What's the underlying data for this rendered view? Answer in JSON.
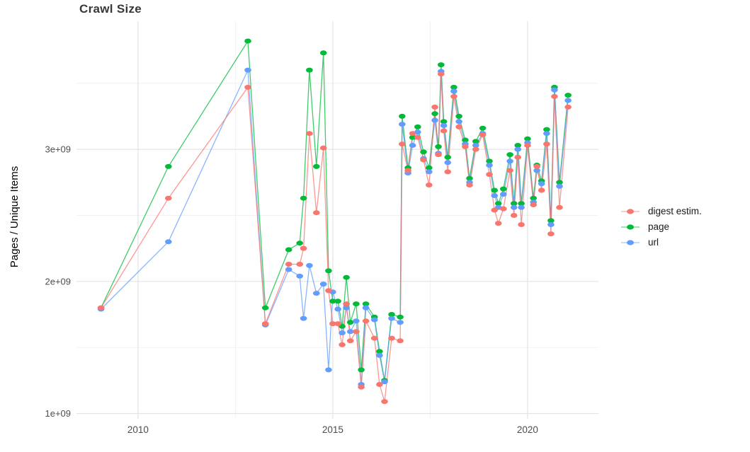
{
  "title": "Crawl Size",
  "y_axis_title": "Pages / Unique Items",
  "chart_data": {
    "type": "line",
    "title": "Crawl Size",
    "xlabel": "",
    "ylabel": "Pages / Unique Items",
    "value_unit": "pages (scientific notation, 1e+09 = 1 billion)",
    "xlim": [
      2008.42,
      2021.82
    ],
    "ylim_e9": [
      0.96,
      3.97
    ],
    "grid": true,
    "x_ticks": [
      {
        "value": 2010,
        "label": "2010"
      },
      {
        "value": 2015,
        "label": "2015"
      },
      {
        "value": 2020,
        "label": "2020"
      }
    ],
    "y_ticks": [
      {
        "value_e9": 1,
        "label": "1e+09"
      },
      {
        "value_e9": 2,
        "label": "2e+09"
      },
      {
        "value_e9": 3,
        "label": "3e+09"
      }
    ],
    "x_minor_gridlines": [
      2012.5,
      2017.5
    ],
    "y_minor_gridlines_e9": [
      1.5,
      2.5,
      3.5
    ],
    "legend": {
      "position": "right",
      "items": [
        {
          "label": "digest estim.",
          "color": "#F8766D"
        },
        {
          "label": "page",
          "color": "#00BA38"
        },
        {
          "label": "url",
          "color": "#619CFF"
        }
      ]
    },
    "x": [
      2009.05,
      2010.78,
      2012.82,
      2013.27,
      2013.87,
      2014.15,
      2014.25,
      2014.4,
      2014.58,
      2014.76,
      2014.89,
      2015.0,
      2015.13,
      2015.24,
      2015.35,
      2015.45,
      2015.6,
      2015.73,
      2015.85,
      2016.07,
      2016.2,
      2016.33,
      2016.51,
      2016.73,
      2016.78,
      2016.93,
      2017.05,
      2017.18,
      2017.33,
      2017.47,
      2017.62,
      2017.71,
      2017.78,
      2017.85,
      2017.95,
      2018.11,
      2018.24,
      2018.4,
      2018.51,
      2018.67,
      2018.85,
      2019.02,
      2019.15,
      2019.25,
      2019.38,
      2019.55,
      2019.65,
      2019.75,
      2019.84,
      2020.0,
      2020.15,
      2020.24,
      2020.36,
      2020.49,
      2020.6,
      2020.69,
      2020.82,
      2021.04
    ],
    "series": [
      {
        "name": "page",
        "color": "#00BA38",
        "values_e9": [
          1.8,
          2.87,
          3.82,
          1.8,
          2.24,
          2.29,
          2.63,
          3.6,
          2.87,
          3.73,
          2.08,
          1.85,
          1.85,
          1.66,
          2.03,
          1.69,
          1.83,
          1.33,
          1.83,
          1.73,
          1.47,
          1.25,
          1.75,
          1.73,
          3.25,
          2.86,
          3.09,
          3.17,
          2.98,
          2.86,
          3.27,
          3.02,
          3.64,
          3.21,
          2.94,
          3.47,
          3.25,
          3.07,
          2.78,
          3.06,
          3.16,
          2.91,
          2.69,
          2.59,
          2.7,
          2.96,
          2.59,
          3.03,
          2.59,
          3.08,
          2.63,
          2.88,
          2.76,
          3.15,
          2.46,
          3.47,
          2.75,
          3.41
        ]
      },
      {
        "name": "url",
        "color": "#619CFF",
        "values_e9": [
          1.79,
          2.3,
          3.6,
          1.67,
          2.09,
          2.04,
          1.72,
          2.12,
          1.91,
          1.98,
          1.33,
          1.92,
          1.79,
          1.61,
          1.8,
          1.62,
          1.7,
          1.22,
          1.8,
          1.71,
          1.44,
          1.24,
          1.72,
          1.69,
          3.19,
          2.82,
          3.03,
          3.13,
          2.93,
          2.83,
          3.22,
          2.97,
          3.59,
          3.18,
          2.9,
          3.44,
          3.21,
          3.04,
          2.75,
          3.03,
          3.12,
          2.88,
          2.65,
          2.56,
          2.66,
          2.91,
          2.56,
          3.0,
          2.56,
          3.05,
          2.6,
          2.84,
          2.74,
          3.12,
          2.43,
          3.45,
          2.72,
          3.37
        ]
      },
      {
        "name": "digest estim.",
        "color": "#F8766D",
        "values_e9": [
          1.8,
          2.63,
          3.47,
          1.68,
          2.13,
          2.13,
          2.25,
          3.12,
          2.52,
          3.01,
          1.93,
          1.68,
          1.68,
          1.52,
          1.83,
          1.55,
          1.62,
          1.2,
          1.7,
          1.57,
          1.22,
          1.09,
          1.57,
          1.55,
          3.04,
          2.84,
          3.12,
          3.09,
          2.92,
          2.73,
          3.32,
          2.96,
          3.57,
          3.14,
          2.83,
          3.4,
          3.17,
          3.02,
          2.73,
          3.0,
          3.11,
          2.81,
          2.54,
          2.44,
          2.55,
          2.84,
          2.5,
          2.94,
          2.43,
          3.03,
          2.58,
          2.87,
          2.69,
          3.04,
          2.36,
          3.4,
          2.56,
          3.32
        ]
      }
    ]
  },
  "style": {
    "grid_major_color": "#e4e4e4",
    "grid_minor_color": "#f1f1f1",
    "tick_label_color": "#4d4d4d",
    "background": "#ffffff"
  }
}
